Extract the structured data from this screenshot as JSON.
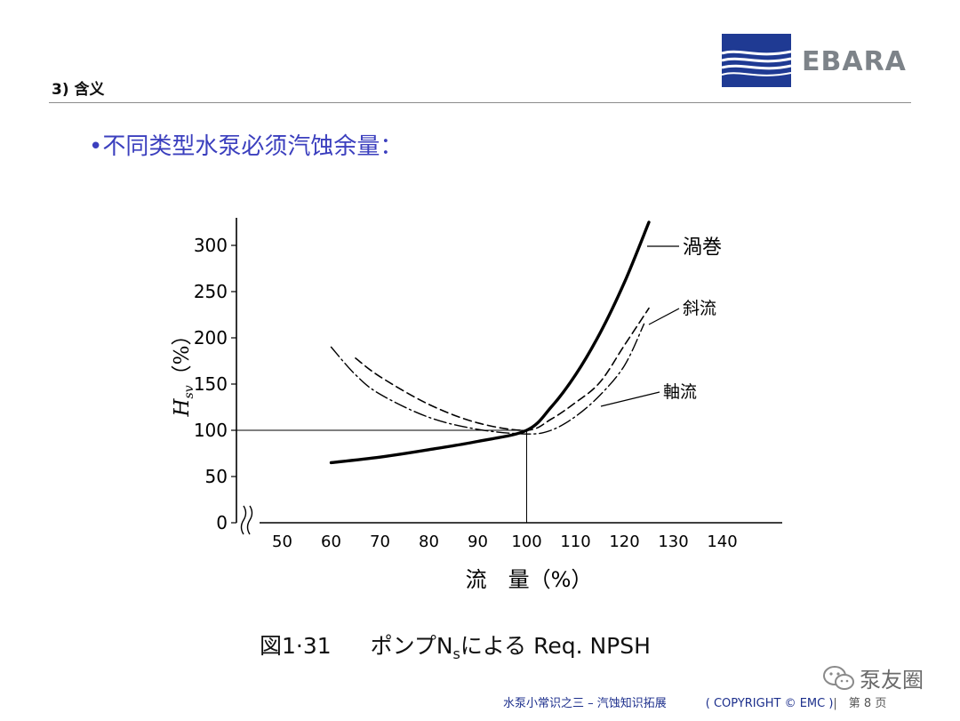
{
  "header": {
    "section_title": "3) 含义",
    "logo_text": "EBARA",
    "logo_color": "#1f3a93"
  },
  "bullet_text": "•不同类型水泵必须汽蚀余量：",
  "chart_data": {
    "type": "line",
    "title": "",
    "xlabel": "流　量（%）",
    "ylabel": "H_sv（%）",
    "xlim": [
      40,
      150
    ],
    "ylim": [
      0,
      330
    ],
    "xticks": [
      50,
      60,
      70,
      80,
      90,
      100,
      110,
      120,
      130,
      140
    ],
    "yticks": [
      0,
      50,
      100,
      150,
      200,
      250,
      300
    ],
    "reference_lines": {
      "x": 100,
      "y": 100
    },
    "series": [
      {
        "name": "渦巻",
        "style": "solid-thick",
        "x": [
          60,
          70,
          80,
          90,
          100,
          105,
          110,
          115,
          120,
          125
        ],
        "y": [
          65,
          71,
          79,
          88,
          100,
          125,
          160,
          205,
          260,
          325
        ]
      },
      {
        "name": "斜流",
        "style": "dashed",
        "x": [
          65,
          70,
          80,
          90,
          100,
          105,
          110,
          115,
          120,
          125
        ],
        "y": [
          178,
          158,
          128,
          108,
          100,
          112,
          130,
          152,
          192,
          232
        ]
      },
      {
        "name": "軸流",
        "style": "dash-dot",
        "x": [
          60,
          65,
          70,
          80,
          90,
          100,
          105,
          110,
          115,
          120,
          124
        ],
        "y": [
          190,
          160,
          139,
          114,
          101,
          96,
          100,
          115,
          138,
          170,
          215
        ]
      }
    ],
    "axis_break": true,
    "y_axis_label": "H",
    "y_axis_label_subscript": "sv",
    "y_axis_label_unit": "（%）",
    "x_axis_label": "流　量（%）"
  },
  "caption": {
    "figure_label": "図1·31",
    "text_prefix": "ポンプN",
    "text_subscript": "s",
    "text_suffix": "による Req. NPSH"
  },
  "footer": {
    "doc_title": "水泵小常识之三 – 汽蚀知识拓展",
    "copyright": "( COPYRIGHT ©  EMC )",
    "page": "|　第 8 页"
  },
  "watermark": {
    "text": "泵友圈",
    "icon": "wechat-icon"
  }
}
